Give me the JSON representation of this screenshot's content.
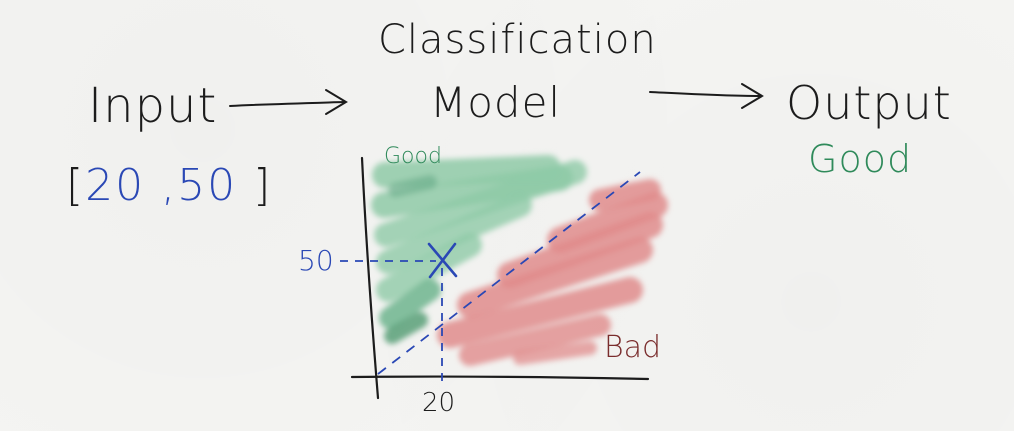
{
  "diagram": {
    "input": {
      "label": "Input",
      "vector_open": "[",
      "x_value": "20",
      "separator": ",",
      "y_value": "50",
      "vector_close": "]"
    },
    "model": {
      "title_line1": "Classification",
      "title_line2": "Model"
    },
    "output": {
      "label": "Output",
      "value": "Good"
    },
    "plot": {
      "good_label": "Good",
      "bad_label": "Bad",
      "y_tick": "50",
      "x_tick": "20",
      "point_marker": "X"
    }
  },
  "colors": {
    "ink": "#1c1c1c",
    "blue": "#2a48b5",
    "good": "#2f8a5a",
    "good_fill": "#8fcaa7",
    "bad_fill": "#e08c8c",
    "bad_text": "#7a2d2d"
  }
}
